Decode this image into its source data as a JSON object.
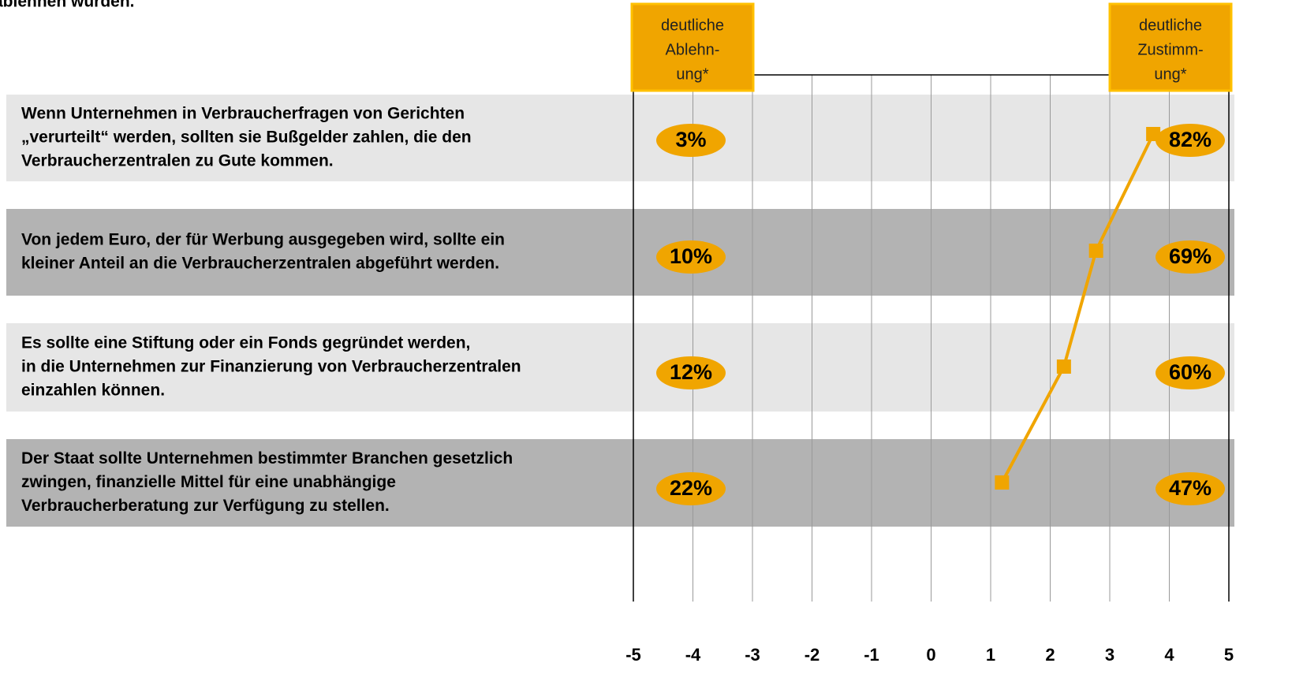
{
  "chart_data": {
    "type": "line",
    "title": "ablehnen würden.",
    "categories": [
      [
        "Wenn Unternehmen in Verbraucherfragen von Gerichten",
        "„verurteilt“ werden, sollten sie Bußgelder zahlen, die den",
        "Verbraucherzentralen zu Gute kommen."
      ],
      [
        "Von jedem Euro, der für Werbung ausgegeben wird, sollte ein",
        "kleiner Anteil an die Verbraucherzentralen abgeführt werden."
      ],
      [
        "Es sollte eine Stiftung oder ein Fonds gegründet werden,",
        "in die Unternehmen zur Finanzierung von Verbraucherzentralen",
        "einzahlen können."
      ],
      [
        "Der Staat sollte Unternehmen bestimmter Branchen gesetzlich",
        "zwingen, finanzielle Mittel für eine unabhängige",
        "Verbraucherberatung zur Verfügung zu stellen."
      ]
    ],
    "values": [
      3.73,
      2.77,
      2.23,
      1.19
    ],
    "color": "#f0a500",
    "xlim": [
      -5,
      5
    ],
    "xticks": [
      -5,
      -4,
      -3,
      -2,
      -1,
      0,
      1,
      2,
      3,
      4,
      5
    ],
    "grid": true,
    "disagree": {
      "label": [
        "deutliche",
        "Ablehn-",
        "ung*"
      ],
      "values": [
        3,
        10,
        12,
        22
      ],
      "value_labels": [
        "3%",
        "10%",
        "12%",
        "22%"
      ]
    },
    "agree": {
      "label": [
        "deutliche",
        "Zustimm-",
        "ung*"
      ],
      "values": [
        82,
        69,
        60,
        47
      ],
      "value_labels": [
        "82%",
        "69%",
        "60%",
        "47%"
      ]
    }
  }
}
